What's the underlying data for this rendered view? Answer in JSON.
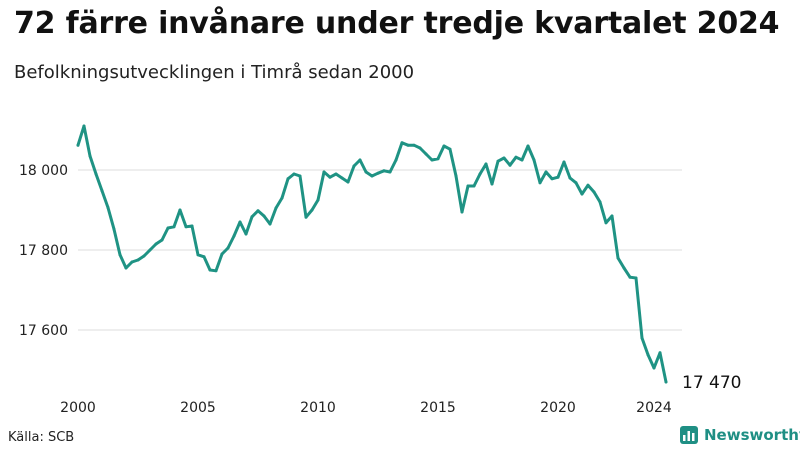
{
  "title": "72 färre invånare under tredje kvartalet 2024",
  "subtitle": "Befolkningsutvecklingen i Timrå sedan 2000",
  "source": "Källa: SCB",
  "brand": {
    "name": "Newsworthy",
    "icon": "newsworthy-logo-icon",
    "color": "#1f8f84"
  },
  "chart_data": {
    "type": "line",
    "title": "72 färre invånare under tredje kvartalet 2024",
    "subtitle": "Befolkningsutvecklingen i Timrå sedan 2000",
    "xlabel": "",
    "ylabel": "",
    "xlim": [
      2000,
      2024.75
    ],
    "ylim": [
      17450,
      18150
    ],
    "grid": true,
    "line_color": "#1f9384",
    "x_ticks": [
      2000,
      2005,
      2010,
      2015,
      2020,
      2024
    ],
    "x_tick_labels": [
      "2000",
      "2005",
      "2010",
      "2015",
      "2020",
      "2024"
    ],
    "y_ticks": [
      17600,
      17800,
      18000
    ],
    "y_tick_labels": [
      "17 600",
      "17 800",
      "18 000"
    ],
    "end_label": "17 470",
    "series": [
      {
        "x": [
          2000.0,
          2000.25,
          2000.5,
          2000.75,
          2001.0,
          2001.25,
          2001.5,
          2001.75,
          2002.0,
          2002.25,
          2002.5,
          2002.75,
          2003.0,
          2003.25,
          2003.5,
          2003.75,
          2004.0,
          2004.25,
          2004.5,
          2004.75,
          2005.0,
          2005.25,
          2005.5,
          2005.75,
          2006.0,
          2006.25,
          2006.5,
          2006.75,
          2007.0,
          2007.25,
          2007.5,
          2007.75,
          2008.0,
          2008.25,
          2008.5,
          2008.75,
          2009.0,
          2009.25,
          2009.5,
          2009.75,
          2010.0,
          2010.25,
          2010.5,
          2010.75,
          2011.0,
          2011.25,
          2011.5,
          2011.75,
          2012.0,
          2012.25,
          2012.5,
          2012.75,
          2013.0,
          2013.25,
          2013.5,
          2013.75,
          2014.0,
          2014.25,
          2014.5,
          2014.75,
          2015.0,
          2015.25,
          2015.5,
          2015.75,
          2016.0,
          2016.25,
          2016.5,
          2016.75,
          2017.0,
          2017.25,
          2017.5,
          2017.75,
          2018.0,
          2018.25,
          2018.5,
          2018.75,
          2019.0,
          2019.25,
          2019.5,
          2019.75,
          2020.0,
          2020.25,
          2020.5,
          2020.75,
          2021.0,
          2021.25,
          2021.5,
          2021.75,
          2022.0,
          2022.25,
          2022.5,
          2022.75,
          2023.0,
          2023.25,
          2023.5,
          2023.75,
          2024.0,
          2024.25,
          2024.5
        ],
        "y": [
          18062,
          18110,
          18035,
          17990,
          17948,
          17906,
          17852,
          17788,
          17755,
          17770,
          17775,
          17785,
          17800,
          17815,
          17825,
          17855,
          17858,
          17900,
          17858,
          17860,
          17788,
          17783,
          17750,
          17748,
          17790,
          17805,
          17835,
          17870,
          17840,
          17883,
          17898,
          17885,
          17865,
          17905,
          17930,
          17978,
          17990,
          17985,
          17882,
          17900,
          17925,
          17995,
          17982,
          17990,
          17980,
          17970,
          18010,
          18025,
          17995,
          17985,
          17992,
          17998,
          17995,
          18025,
          18068,
          18062,
          18062,
          18055,
          18040,
          18025,
          18028,
          18060,
          18052,
          17985,
          17895,
          17960,
          17960,
          17990,
          18015,
          17965,
          18022,
          18030,
          18012,
          18032,
          18025,
          18060,
          18025,
          17968,
          17995,
          17978,
          17982,
          18020,
          17980,
          17968,
          17940,
          17962,
          17945,
          17920,
          17868,
          17885,
          17780,
          17755,
          17732,
          17730,
          17580,
          17538,
          17505,
          17543,
          17470
        ]
      }
    ]
  }
}
